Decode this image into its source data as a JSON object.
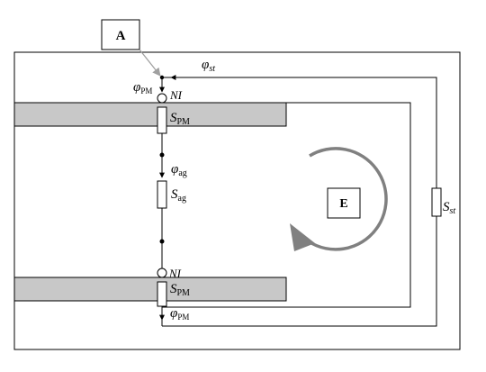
{
  "labels": {
    "box_a": "A",
    "box_e": "E",
    "phi_st": {
      "main": "φ",
      "sub": "st"
    },
    "phi_pm_top": {
      "main": "φ",
      "sub": "PM"
    },
    "phi_ag": {
      "main": "φ",
      "sub": "ag"
    },
    "phi_pm_bottom": {
      "main": "φ",
      "sub": "PM"
    },
    "ni_top": "NI",
    "ni_bottom": "NI",
    "s_pm_top": {
      "main": "S",
      "sub": "PM"
    },
    "s_ag": {
      "main": "S",
      "sub": "ag"
    },
    "s_pm_bottom": {
      "main": "S",
      "sub": "PM"
    },
    "s_st": {
      "main": "S",
      "sub": "st"
    }
  },
  "colors": {
    "line": "#000000",
    "core_fill": "#c8c8c8",
    "arc": "#808080",
    "leader": "#a0a0a0",
    "background": "#ffffff"
  }
}
